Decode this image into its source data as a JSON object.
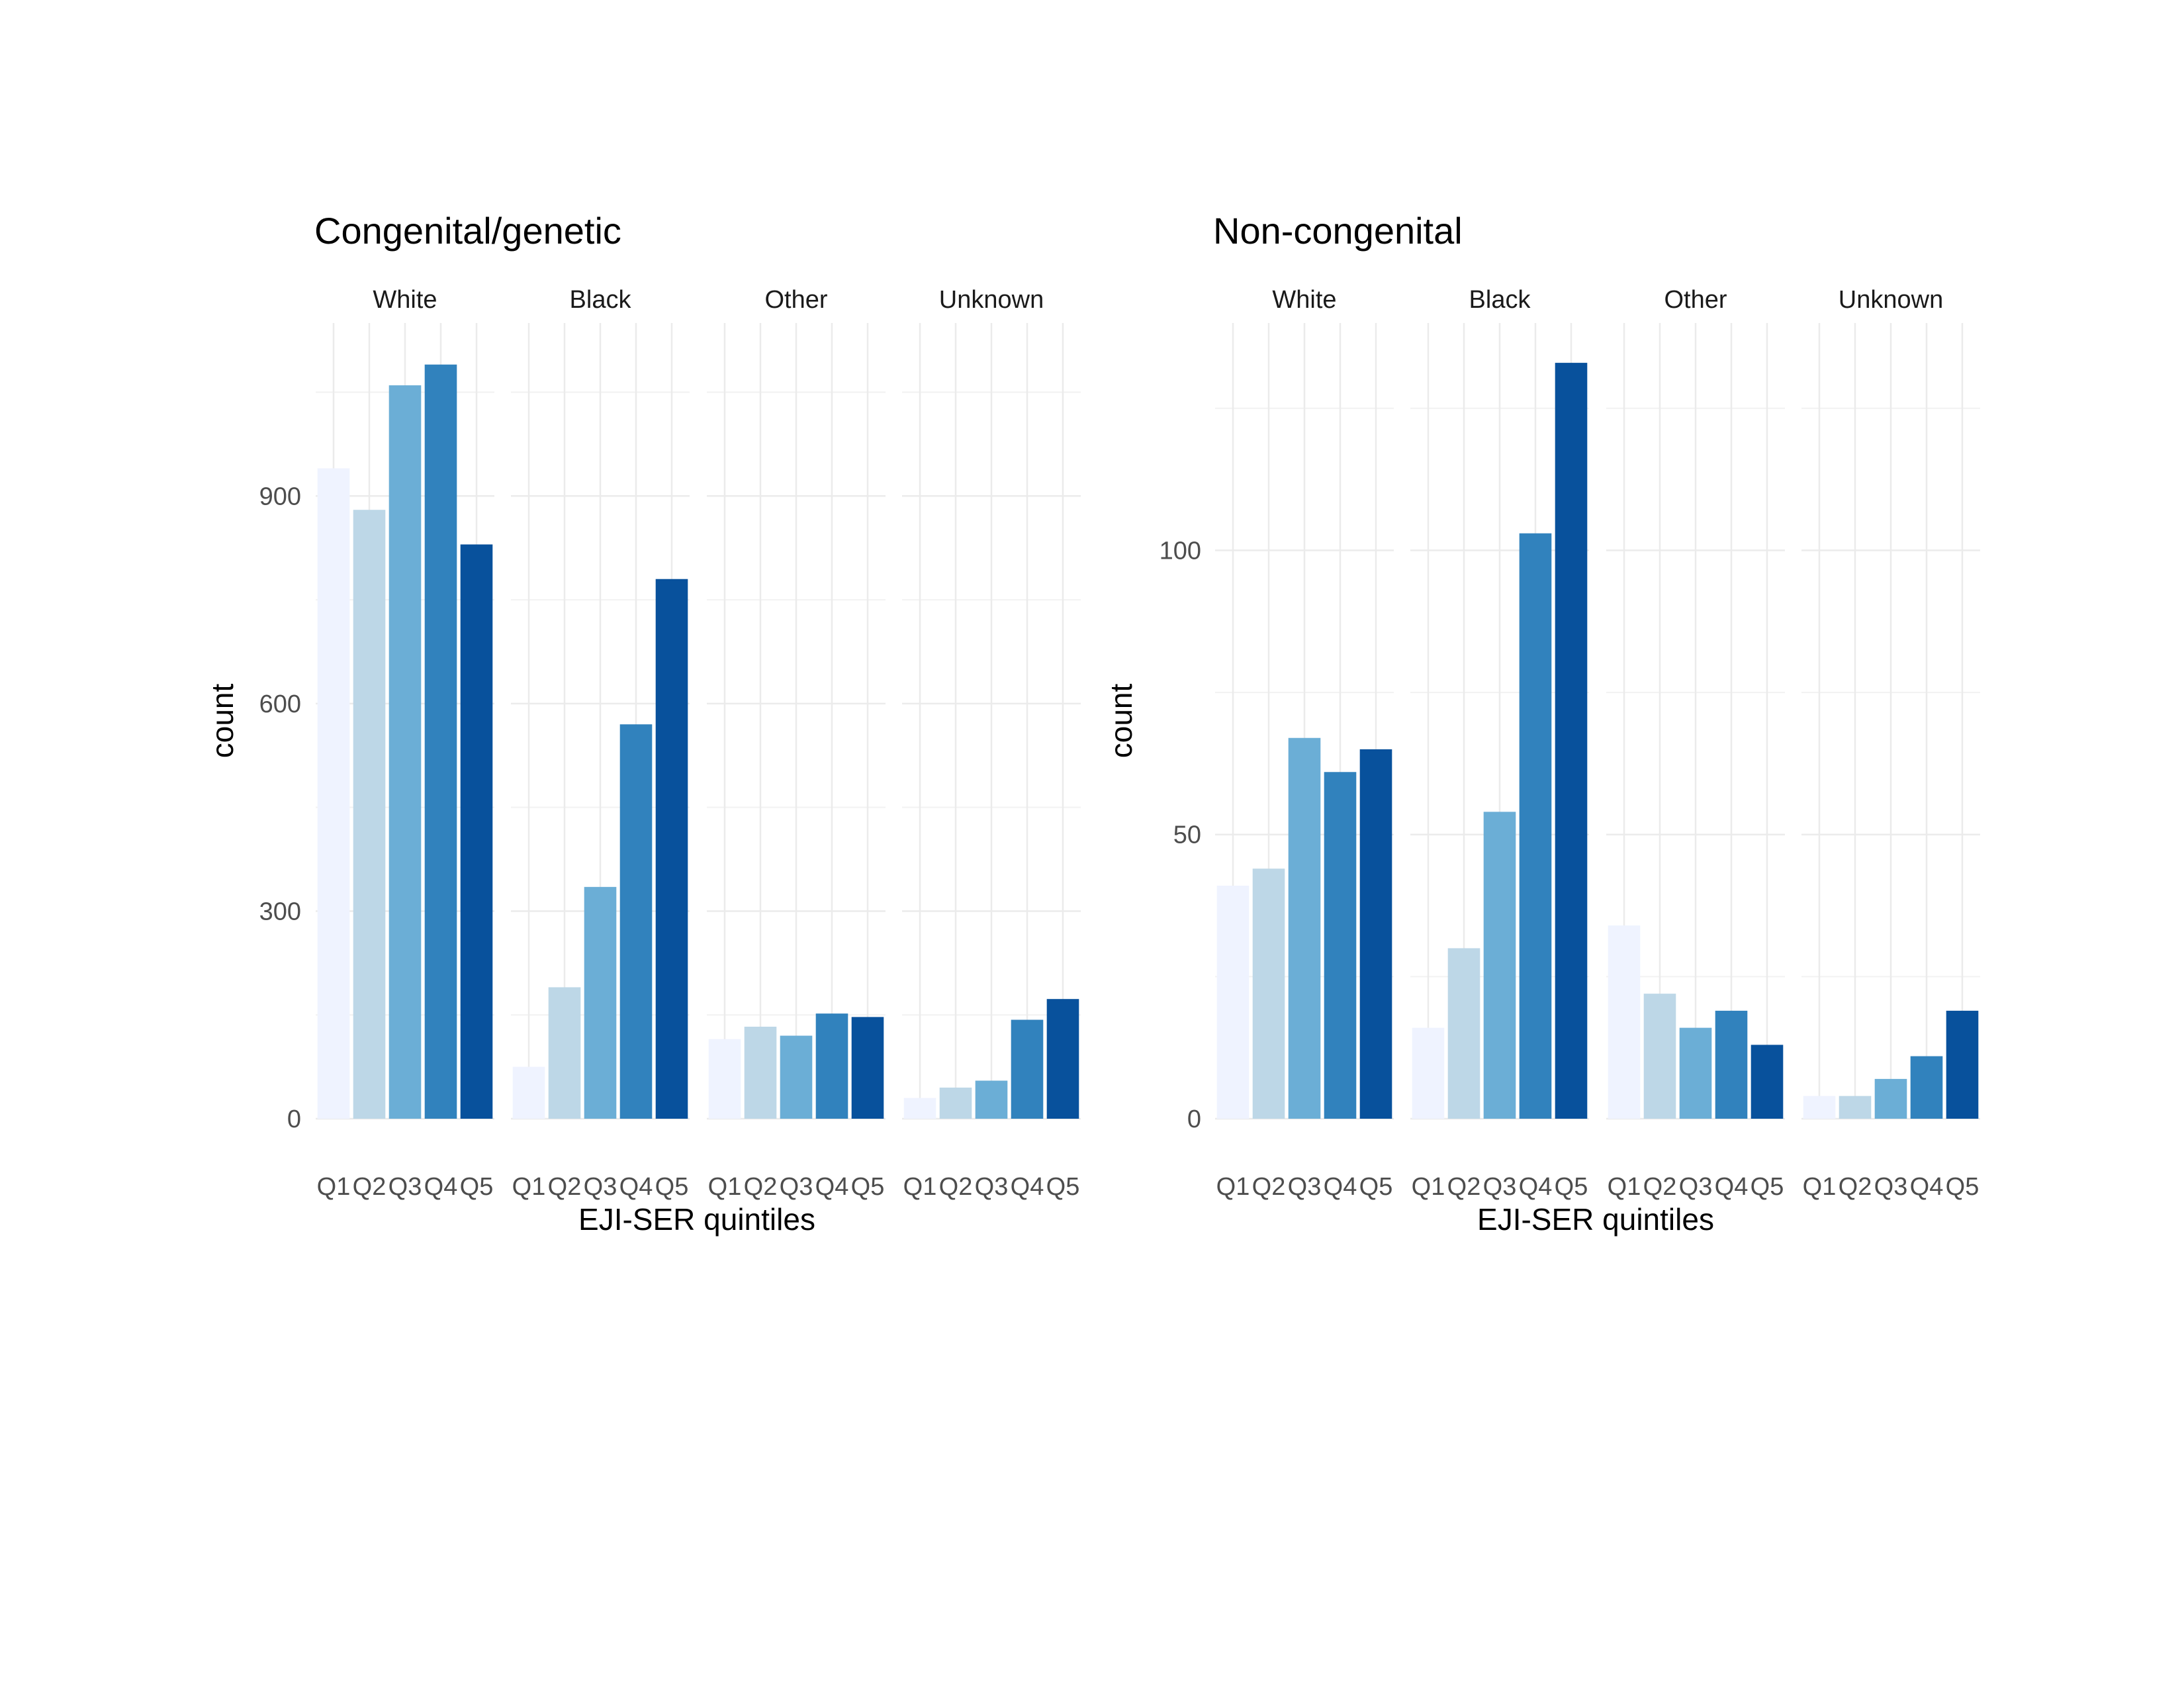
{
  "chart_data": [
    {
      "type": "bar",
      "title": "Congenital/genetic",
      "xlabel": "EJI-SER quintiles",
      "ylabel": "count",
      "ylim": [
        0,
        1150
      ],
      "yticks": [
        0,
        300,
        600,
        900
      ],
      "grid": true,
      "legend": "none",
      "categories": [
        "Q1",
        "Q2",
        "Q3",
        "Q4",
        "Q5"
      ],
      "category_colors": [
        "#eff3ff",
        "#bdd7e7",
        "#6baed6",
        "#3182bd",
        "#08519c"
      ],
      "facets": [
        {
          "name": "White",
          "values": [
            940,
            880,
            1060,
            1090,
            830
          ]
        },
        {
          "name": "Black",
          "values": [
            75,
            190,
            335,
            570,
            780
          ]
        },
        {
          "name": "Other",
          "values": [
            115,
            133,
            120,
            152,
            147
          ]
        },
        {
          "name": "Unknown",
          "values": [
            30,
            45,
            55,
            143,
            173
          ]
        }
      ]
    },
    {
      "type": "bar",
      "title": "Non-congenital",
      "xlabel": "EJI-SER quintiles",
      "ylabel": "count",
      "ylim": [
        0,
        140
      ],
      "yticks": [
        0,
        50,
        100
      ],
      "grid": true,
      "legend": "none",
      "categories": [
        "Q1",
        "Q2",
        "Q3",
        "Q4",
        "Q5"
      ],
      "category_colors": [
        "#eff3ff",
        "#bdd7e7",
        "#6baed6",
        "#3182bd",
        "#08519c"
      ],
      "facets": [
        {
          "name": "White",
          "values": [
            41,
            44,
            67,
            61,
            65
          ]
        },
        {
          "name": "Black",
          "values": [
            16,
            30,
            54,
            103,
            133
          ]
        },
        {
          "name": "Other",
          "values": [
            34,
            22,
            16,
            19,
            13
          ]
        },
        {
          "name": "Unknown",
          "values": [
            4,
            4,
            7,
            11,
            19
          ]
        }
      ]
    }
  ]
}
